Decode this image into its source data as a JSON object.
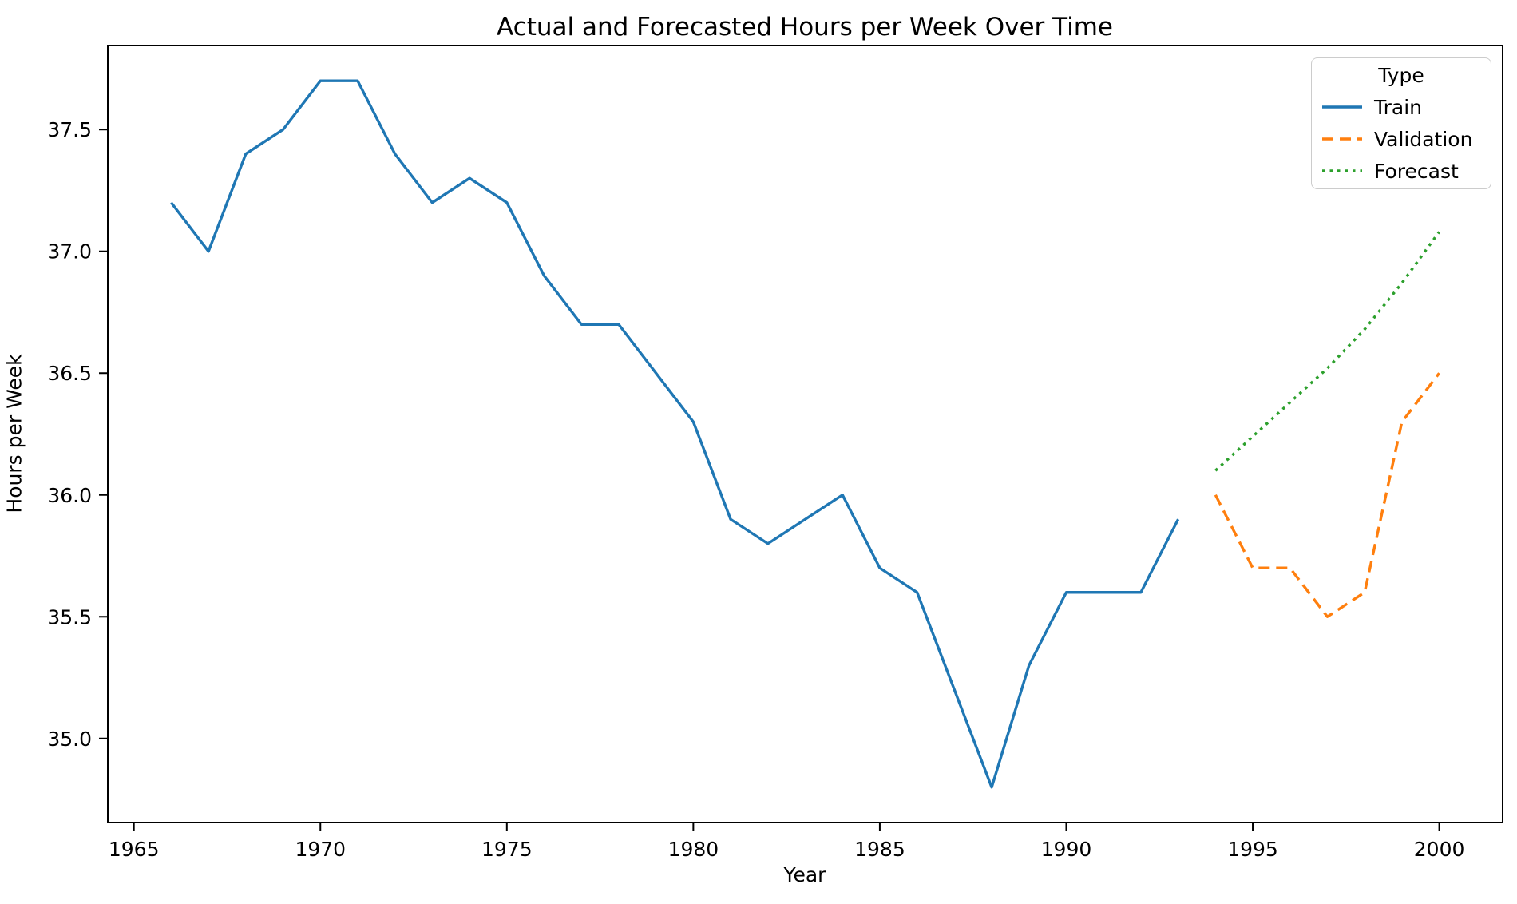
{
  "figure": {
    "title": "Actual and Forecasted Hours per Week Over Time"
  },
  "chart_data": {
    "type": "line",
    "title": "Actual and Forecasted Hours per Week Over Time",
    "xlabel": "Year",
    "ylabel": "Hours per Week",
    "xlim": [
      1964.3,
      2001.7
    ],
    "ylim": [
      34.655,
      37.845
    ],
    "x_ticks": [
      1965,
      1970,
      1975,
      1980,
      1985,
      1990,
      1995,
      2000
    ],
    "y_ticks": [
      35.0,
      35.5,
      36.0,
      36.5,
      37.0,
      37.5
    ],
    "grid": false,
    "legend": {
      "title": "Type",
      "position": "upper right"
    },
    "series": [
      {
        "name": "Train",
        "color": "#1f77b4",
        "style": "solid",
        "x": [
          1966,
          1967,
          1968,
          1969,
          1970,
          1971,
          1972,
          1973,
          1974,
          1975,
          1976,
          1977,
          1978,
          1979,
          1980,
          1981,
          1982,
          1983,
          1984,
          1985,
          1986,
          1987,
          1988,
          1989,
          1990,
          1991,
          1992,
          1993
        ],
        "y": [
          37.2,
          37.0,
          37.4,
          37.5,
          37.7,
          37.7,
          37.4,
          37.2,
          37.3,
          37.2,
          36.9,
          36.7,
          36.7,
          36.5,
          36.3,
          35.9,
          35.8,
          35.9,
          36.0,
          35.7,
          35.6,
          35.2,
          34.8,
          35.3,
          35.6,
          35.6,
          35.6,
          35.9
        ]
      },
      {
        "name": "Validation",
        "color": "#ff7f0e",
        "style": "dashed",
        "x": [
          1994,
          1995,
          1996,
          1997,
          1998,
          1999,
          2000
        ],
        "y": [
          36.0,
          35.7,
          35.7,
          35.5,
          35.6,
          36.3,
          36.5
        ]
      },
      {
        "name": "Forecast",
        "color": "#2ca02c",
        "style": "dotted",
        "x": [
          1994,
          1995,
          1996,
          1997,
          1998,
          1999,
          2000
        ],
        "y": [
          36.1,
          36.24,
          36.38,
          36.52,
          36.68,
          36.87,
          37.08
        ]
      }
    ]
  }
}
